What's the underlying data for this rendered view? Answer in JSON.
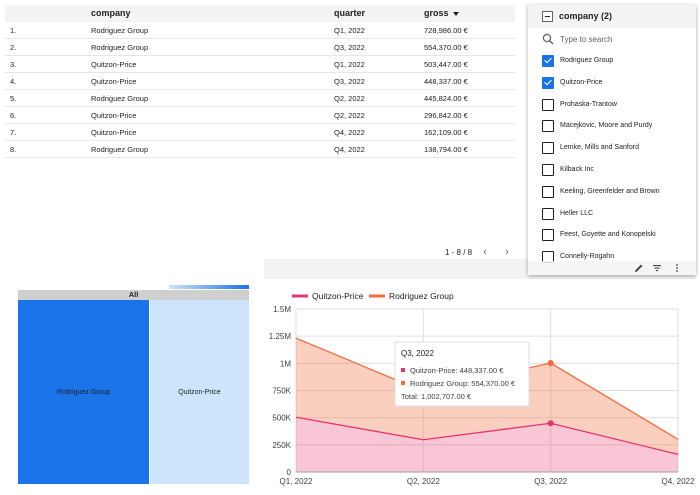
{
  "table": {
    "headers": {
      "company": "company",
      "quarter": "quarter",
      "gross": "gross"
    },
    "rows": [
      {
        "idx": "1.",
        "company": "Rodriguez Group",
        "quarter": "Q1, 2022",
        "gross": "728,986.00 €"
      },
      {
        "idx": "2.",
        "company": "Rodriguez Group",
        "quarter": "Q3, 2022",
        "gross": "554,370.00 €"
      },
      {
        "idx": "3.",
        "company": "Quitzon-Price",
        "quarter": "Q1, 2022",
        "gross": "503,447.00 €"
      },
      {
        "idx": "4.",
        "company": "Quitzon-Price",
        "quarter": "Q3, 2022",
        "gross": "448,337.00 €"
      },
      {
        "idx": "5.",
        "company": "Rodriguez Group",
        "quarter": "Q2, 2022",
        "gross": "445,824.00 €"
      },
      {
        "idx": "6.",
        "company": "Quitzon-Price",
        "quarter": "Q2, 2022",
        "gross": "296,842.00 €"
      },
      {
        "idx": "7.",
        "company": "Quitzon-Price",
        "quarter": "Q4, 2022",
        "gross": "162,109.00 €"
      },
      {
        "idx": "8.",
        "company": "Rodriguez Group",
        "quarter": "Q4, 2022",
        "gross": "138,794.00 €"
      }
    ],
    "pagination": "1 - 8 / 8"
  },
  "filter": {
    "title": "company (2)",
    "search_placeholder": "Type to search",
    "items": [
      {
        "label": "Rodriguez Group",
        "checked": true
      },
      {
        "label": "Quitzon-Price",
        "checked": true
      },
      {
        "label": "Prohaska-Trantow",
        "checked": false
      },
      {
        "label": "Macejkovic, Moore and Purdy",
        "checked": false
      },
      {
        "label": "Lemke, Mills and Sanford",
        "checked": false
      },
      {
        "label": "Kilback Inc",
        "checked": false
      },
      {
        "label": "Keeling, Greenfelder and Brown",
        "checked": false
      },
      {
        "label": "Heller LLC",
        "checked": false
      },
      {
        "label": "Feest, Goyette and Konopelski",
        "checked": false
      },
      {
        "label": "Connelly-Rogahn",
        "checked": false
      }
    ],
    "toolbar_icons": [
      "pencil-icon",
      "filter-lines-icon",
      "more-vert-icon"
    ]
  },
  "treemap": {
    "header": "All",
    "cells": [
      {
        "label": "Rodriguez Group",
        "color": "#1a73e8"
      },
      {
        "label": "Quitzon-Price",
        "color": "#cde4fb"
      }
    ]
  },
  "colors": {
    "quitzon": "#e8336d",
    "rodriguez": "#f26b3a",
    "accent": "#1a73e8"
  },
  "chart_data": {
    "type": "area",
    "stacked": true,
    "categories": [
      "Q1, 2022",
      "Q2, 2022",
      "Q3, 2022",
      "Q4, 2022"
    ],
    "series": [
      {
        "name": "Quitzon-Price",
        "values": [
          503447,
          296842,
          448337,
          162109
        ],
        "color": "#e8336d"
      },
      {
        "name": "Rodriguez Group",
        "values": [
          728986,
          445824,
          554370,
          138794
        ],
        "color": "#f26b3a"
      }
    ],
    "yticks": [
      "0",
      "250K",
      "500K",
      "750K",
      "1M",
      "1.25M",
      "1.5M"
    ],
    "ylim": [
      0,
      1500000
    ],
    "legend": "top-left",
    "grid": true,
    "tooltip": {
      "title": "Q3, 2022",
      "lines": [
        "Quitzon-Price: 448,337.00 €",
        "Rodriguez Group: 554,370.00 €"
      ],
      "total": "Total: 1,002,707.00 €"
    }
  }
}
